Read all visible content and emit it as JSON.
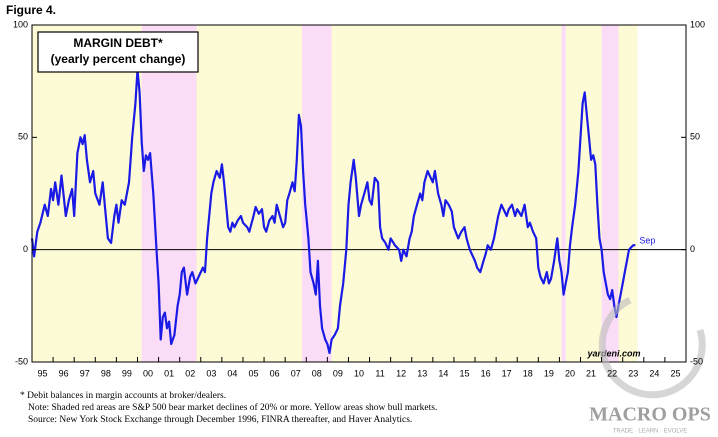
{
  "chart_data": {
    "type": "line",
    "figure_label": "Figure 4.",
    "title": "MARGIN DEBT*",
    "subtitle": "(yearly percent change)",
    "color": "#1a1ae6",
    "end_label": "Sep",
    "source_tag": "yardeni.com",
    "footnotes": [
      "*  Debit balances in margin accounts at broker/dealers.",
      "Note: Shaded red areas are S&P 500 bear market declines of 20% or more. Yellow areas show bull markets.",
      "Source: New York Stock Exchange through December 1996, FINRA thereafter, and Haver Analytics."
    ],
    "watermark": {
      "name": "MACRO OPS",
      "tagline": "TRADE · LEARN · EVOLVE"
    },
    "xlim": [
      1995,
      2026
    ],
    "ylim": [
      -50,
      100
    ],
    "yticks": [
      -50,
      0,
      50,
      100
    ],
    "zero_line": 0,
    "xticks": [
      {
        "value": 1995,
        "label": "95"
      },
      {
        "value": 1996,
        "label": "96"
      },
      {
        "value": 1997,
        "label": "97"
      },
      {
        "value": 1998,
        "label": "98"
      },
      {
        "value": 1999,
        "label": "99"
      },
      {
        "value": 2000,
        "label": "00"
      },
      {
        "value": 2001,
        "label": "01"
      },
      {
        "value": 2002,
        "label": "02"
      },
      {
        "value": 2003,
        "label": "03"
      },
      {
        "value": 2004,
        "label": "04"
      },
      {
        "value": 2005,
        "label": "05"
      },
      {
        "value": 2006,
        "label": "06"
      },
      {
        "value": 2007,
        "label": "07"
      },
      {
        "value": 2008,
        "label": "08"
      },
      {
        "value": 2009,
        "label": "09"
      },
      {
        "value": 2010,
        "label": "10"
      },
      {
        "value": 2011,
        "label": "11"
      },
      {
        "value": 2012,
        "label": "12"
      },
      {
        "value": 2013,
        "label": "13"
      },
      {
        "value": 2014,
        "label": "14"
      },
      {
        "value": 2015,
        "label": "15"
      },
      {
        "value": 2016,
        "label": "16"
      },
      {
        "value": 2017,
        "label": "17"
      },
      {
        "value": 2018,
        "label": "18"
      },
      {
        "value": 2019,
        "label": "19"
      },
      {
        "value": 2020,
        "label": "20"
      },
      {
        "value": 2021,
        "label": "21"
      },
      {
        "value": 2022,
        "label": "22"
      },
      {
        "value": 2023,
        "label": "23"
      },
      {
        "value": 2024,
        "label": "24"
      },
      {
        "value": 2025,
        "label": "25"
      }
    ],
    "bull_markets": [
      [
        1995,
        2000.2
      ],
      [
        2002.8,
        2007.8
      ],
      [
        2009.2,
        2020.1
      ],
      [
        2020.3,
        2022.0
      ],
      [
        2022.8,
        2023.7
      ]
    ],
    "bear_markets": [
      [
        2000.2,
        2002.8
      ],
      [
        2007.8,
        2009.2
      ],
      [
        2020.1,
        2020.3
      ],
      [
        2022.0,
        2022.8
      ]
    ],
    "x": [
      1995.0,
      1995.1,
      1995.25,
      1995.4,
      1995.6,
      1995.75,
      1995.9,
      1996.0,
      1996.1,
      1996.25,
      1996.4,
      1996.6,
      1996.75,
      1996.9,
      1997.0,
      1997.15,
      1997.3,
      1997.4,
      1997.5,
      1997.6,
      1997.75,
      1997.9,
      1998.0,
      1998.2,
      1998.35,
      1998.5,
      1998.6,
      1998.75,
      1998.9,
      1999.0,
      1999.1,
      1999.25,
      1999.4,
      1999.5,
      1999.6,
      1999.75,
      1999.9,
      2000.0,
      2000.1,
      2000.2,
      2000.3,
      2000.4,
      2000.5,
      2000.6,
      2000.75,
      2000.9,
      2001.0,
      2001.1,
      2001.2,
      2001.3,
      2001.4,
      2001.5,
      2001.6,
      2001.75,
      2001.9,
      2002.0,
      2002.1,
      2002.2,
      2002.35,
      2002.5,
      2002.6,
      2002.75,
      2002.9,
      2003.1,
      2003.2,
      2003.3,
      2003.4,
      2003.5,
      2003.6,
      2003.75,
      2003.9,
      2004.0,
      2004.1,
      2004.2,
      2004.3,
      2004.4,
      2004.5,
      2004.6,
      2004.75,
      2004.9,
      2005.0,
      2005.2,
      2005.3,
      2005.5,
      2005.6,
      2005.75,
      2005.9,
      2006.0,
      2006.1,
      2006.25,
      2006.4,
      2006.5,
      2006.6,
      2006.75,
      2006.9,
      2007.0,
      2007.1,
      2007.2,
      2007.35,
      2007.45,
      2007.55,
      2007.65,
      2007.75,
      2007.85,
      2007.95,
      2008.0,
      2008.1,
      2008.2,
      2008.35,
      2008.45,
      2008.55,
      2008.65,
      2008.75,
      2008.9,
      2009.0,
      2009.1,
      2009.2,
      2009.35,
      2009.5,
      2009.6,
      2009.75,
      2009.9,
      2010.0,
      2010.1,
      2010.25,
      2010.35,
      2010.5,
      2010.6,
      2010.75,
      2010.9,
      2011.0,
      2011.1,
      2011.25,
      2011.4,
      2011.5,
      2011.6,
      2011.75,
      2011.9,
      2012.0,
      2012.2,
      2012.4,
      2012.5,
      2012.6,
      2012.75,
      2012.9,
      2013.0,
      2013.1,
      2013.25,
      2013.4,
      2013.5,
      2013.6,
      2013.75,
      2013.9,
      2014.0,
      2014.1,
      2014.25,
      2014.4,
      2014.5,
      2014.6,
      2014.75,
      2014.9,
      2015.0,
      2015.2,
      2015.35,
      2015.5,
      2015.6,
      2015.75,
      2015.9,
      2016.0,
      2016.1,
      2016.25,
      2016.4,
      2016.5,
      2016.6,
      2016.75,
      2016.9,
      2017.0,
      2017.1,
      2017.25,
      2017.4,
      2017.5,
      2017.6,
      2017.75,
      2017.9,
      2018.0,
      2018.2,
      2018.35,
      2018.5,
      2018.6,
      2018.75,
      2018.9,
      2019.0,
      2019.1,
      2019.25,
      2019.4,
      2019.5,
      2019.6,
      2019.75,
      2019.9,
      2020.0,
      2020.1,
      2020.2,
      2020.3,
      2020.4,
      2020.5,
      2020.6,
      2020.75,
      2020.9,
      2021.0,
      2021.1,
      2021.2,
      2021.3,
      2021.4,
      2021.5,
      2021.6,
      2021.7,
      2021.8,
      2021.9,
      2022.0,
      2022.1,
      2022.2,
      2022.3,
      2022.4,
      2022.5,
      2022.6,
      2022.7,
      2022.8,
      2022.9,
      2023.0,
      2023.1,
      2023.2,
      2023.3,
      2023.4,
      2023.5,
      2023.6
    ],
    "values": [
      5,
      -3,
      8,
      12,
      20,
      15,
      27,
      22,
      30,
      20,
      33,
      15,
      22,
      27,
      15,
      43,
      50,
      47,
      51,
      40,
      30,
      35,
      25,
      20,
      30,
      15,
      5,
      3,
      15,
      20,
      12,
      22,
      20,
      25,
      30,
      50,
      65,
      80,
      70,
      48,
      35,
      42,
      40,
      43,
      25,
      0,
      -15,
      -40,
      -30,
      -28,
      -35,
      -32,
      -42,
      -38,
      -25,
      -20,
      -10,
      -8,
      -20,
      -12,
      -10,
      -15,
      -12,
      -8,
      -10,
      5,
      15,
      25,
      30,
      35,
      32,
      38,
      30,
      20,
      10,
      8,
      12,
      10,
      13,
      15,
      12,
      10,
      8,
      15,
      19,
      16,
      18,
      10,
      8,
      13,
      15,
      12,
      20,
      15,
      10,
      12,
      22,
      25,
      30,
      26,
      40,
      60,
      55,
      35,
      20,
      15,
      5,
      -10,
      -15,
      -20,
      -5,
      -25,
      -35,
      -40,
      -42,
      -46,
      -40,
      -38,
      -35,
      -25,
      -15,
      0,
      20,
      30,
      40,
      32,
      15,
      20,
      25,
      30,
      22,
      20,
      32,
      30,
      10,
      5,
      3,
      0,
      5,
      2,
      0,
      -5,
      0,
      -3,
      5,
      8,
      15,
      20,
      25,
      22,
      30,
      35,
      32,
      30,
      35,
      25,
      20,
      15,
      22,
      20,
      17,
      10,
      5,
      8,
      10,
      5,
      0,
      -3,
      -5,
      -8,
      -10,
      -5,
      -2,
      2,
      0,
      5,
      10,
      15,
      20,
      17,
      15,
      18,
      20,
      15,
      18,
      15,
      20,
      10,
      12,
      8,
      5,
      -8,
      -12,
      -15,
      -10,
      -15,
      -13,
      -5,
      5,
      -5,
      -10,
      -20,
      -15,
      -10,
      2,
      10,
      20,
      35,
      50,
      65,
      70,
      60,
      50,
      40,
      42,
      38,
      20,
      5,
      0,
      -10,
      -15,
      -20,
      -22,
      -18,
      -25,
      -30,
      -25,
      -20,
      -15,
      -10,
      -5,
      0,
      1,
      2,
      2
    ]
  }
}
